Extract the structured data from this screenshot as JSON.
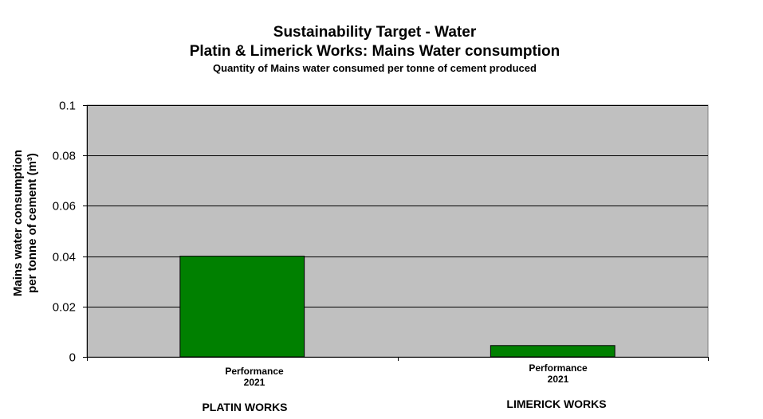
{
  "chart_data": {
    "type": "bar",
    "title": "Sustainability Target - Water",
    "subtitle": "Platin & Limerick Works: Mains Water consumption",
    "subtitle2": "Quantity of Mains water consumed per tonne of cement produced",
    "ylabel_line1": "Mains water consumption",
    "ylabel_line2": "per tonne of cement (m³)",
    "categories": [
      "PLATIN WORKS",
      "LIMERICK WORKS"
    ],
    "bar_labels": [
      [
        "Performance",
        "2021"
      ],
      [
        "Performance",
        "2021"
      ]
    ],
    "values": [
      0.04,
      0.0045
    ],
    "ylim": [
      0,
      0.1
    ],
    "yticks": [
      "0",
      "0.02",
      "0.04",
      "0.06",
      "0.08",
      "0.1"
    ],
    "ytick_values": [
      0,
      0.02,
      0.04,
      0.06,
      0.08,
      0.1
    ],
    "grid": true,
    "colors": {
      "bar": "#008000",
      "plot_bg": "#c0c0c0"
    }
  }
}
